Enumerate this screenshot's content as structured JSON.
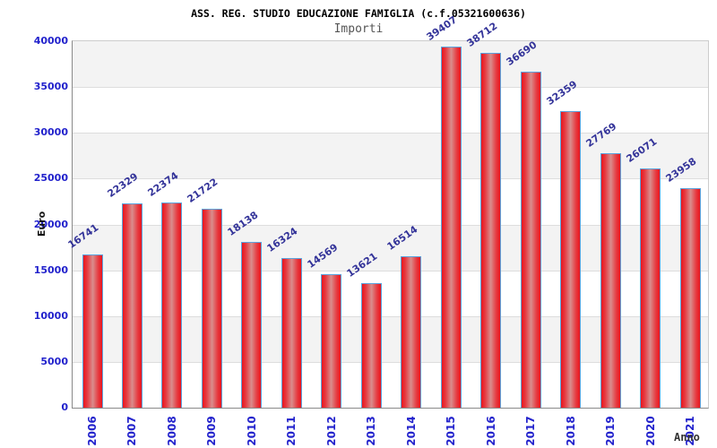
{
  "header": {
    "title": "ASS. REG. STUDIO EDUCAZIONE FAMIGLIA (c.f.05321600636)",
    "subtitle": "Importi"
  },
  "axes": {
    "y_label": "Euro",
    "x_label": "Anno"
  },
  "colors": {
    "bar_fill": "#ea151d",
    "bar_highlight": "#d98d8d",
    "bar_border": "#5ba3dd",
    "value_label": "#333399",
    "tick_label": "#2222cc",
    "band_gray": "#f3f3f3",
    "band_white": "#ffffff",
    "gridline": "#dddddd"
  },
  "chart_data": {
    "type": "bar",
    "title": "ASS. REG. STUDIO EDUCAZIONE FAMIGLIA (c.f.05321600636)",
    "subtitle": "Importi",
    "xlabel": "Anno",
    "ylabel": "Euro",
    "categories": [
      "2006",
      "2007",
      "2008",
      "2009",
      "2010",
      "2011",
      "2012",
      "2013",
      "2014",
      "2015",
      "2016",
      "2017",
      "2018",
      "2019",
      "2020",
      "2021"
    ],
    "values": [
      16741,
      22329,
      22374,
      21722,
      18138,
      16324,
      14569,
      13621,
      16514,
      39407,
      38712,
      36690,
      32359,
      27769,
      26071,
      23958
    ],
    "ylim": [
      0,
      40000
    ],
    "yticks": [
      0,
      5000,
      10000,
      15000,
      20000,
      25000,
      30000,
      35000,
      40000
    ],
    "grid": "horizontal alternating bands, gray-white from top",
    "legend": "none",
    "bar_labels_rotation_deg": -35,
    "x_labels_rotation_deg": -90
  }
}
